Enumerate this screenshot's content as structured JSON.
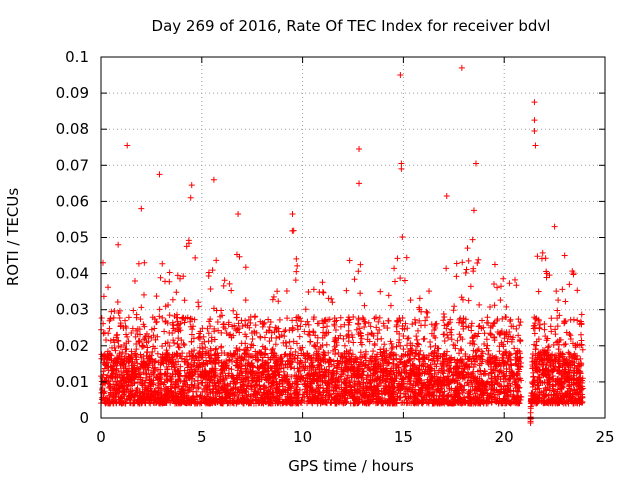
{
  "chart_data": {
    "type": "scatter",
    "title": "Day 269 of 2016, Rate Of TEC Index for receiver bdvl",
    "xlabel": "GPS time / hours",
    "ylabel": "ROTI / TECUs",
    "xlim": [
      0,
      25
    ],
    "ylim": [
      0,
      0.1
    ],
    "xticks": [
      "0",
      "5",
      "10",
      "15",
      "20",
      "25"
    ],
    "yticks": [
      "0",
      "0.01",
      "0.02",
      "0.03",
      "0.04",
      "0.05",
      "0.06",
      "0.07",
      "0.08",
      "0.09",
      "0.1"
    ],
    "grid": true,
    "marker": "+",
    "color": "#ff0000",
    "outliers": [
      {
        "x": 1.3,
        "y": 0.0755
      },
      {
        "x": 2.9,
        "y": 0.0675
      },
      {
        "x": 4.5,
        "y": 0.0645
      },
      {
        "x": 4.45,
        "y": 0.061
      },
      {
        "x": 5.6,
        "y": 0.066
      },
      {
        "x": 6.8,
        "y": 0.0565
      },
      {
        "x": 9.5,
        "y": 0.0565
      },
      {
        "x": 12.8,
        "y": 0.0745
      },
      {
        "x": 12.8,
        "y": 0.065
      },
      {
        "x": 14.85,
        "y": 0.095
      },
      {
        "x": 14.9,
        "y": 0.0705
      },
      {
        "x": 14.9,
        "y": 0.069
      },
      {
        "x": 17.15,
        "y": 0.0615
      },
      {
        "x": 17.9,
        "y": 0.097
      },
      {
        "x": 18.6,
        "y": 0.0705
      },
      {
        "x": 18.5,
        "y": 0.0575
      },
      {
        "x": 21.5,
        "y": 0.0875
      },
      {
        "x": 21.5,
        "y": 0.0825
      },
      {
        "x": 21.5,
        "y": 0.0795
      },
      {
        "x": 21.55,
        "y": 0.0755
      },
      {
        "x": 22.5,
        "y": 0.053
      },
      {
        "x": 23.0,
        "y": 0.045
      },
      {
        "x": 2.0,
        "y": 0.058
      },
      {
        "x": 0.85,
        "y": 0.048
      },
      {
        "x": 0.1,
        "y": 0.043
      }
    ],
    "density_profile": {
      "x": [
        0,
        0.5,
        1,
        1.5,
        2,
        2.5,
        3,
        3.5,
        4,
        4.5,
        5,
        5.5,
        6,
        6.5,
        7,
        7.5,
        8,
        8.5,
        9,
        9.5,
        10,
        10.5,
        11,
        11.5,
        12,
        12.5,
        13,
        13.5,
        14,
        14.5,
        15,
        15.5,
        16,
        16.5,
        17,
        17.5,
        18,
        18.5,
        19,
        19.5,
        20,
        20.5,
        20.9,
        21.3,
        21.5,
        22,
        22.5,
        23,
        23.5,
        23.9
      ],
      "upper": [
        0.042,
        0.034,
        0.036,
        0.04,
        0.05,
        0.042,
        0.052,
        0.038,
        0.045,
        0.06,
        0.03,
        0.045,
        0.047,
        0.036,
        0.055,
        0.035,
        0.033,
        0.038,
        0.036,
        0.055,
        0.038,
        0.04,
        0.042,
        0.035,
        0.036,
        0.05,
        0.05,
        0.038,
        0.034,
        0.045,
        0.053,
        0.042,
        0.038,
        0.035,
        0.05,
        0.044,
        0.045,
        0.055,
        0.045,
        0.046,
        0.038,
        0.04,
        0.035,
        0,
        0.045,
        0.049,
        0.038,
        0.035,
        0.045,
        0.032
      ],
      "floor": 0.004
    }
  }
}
